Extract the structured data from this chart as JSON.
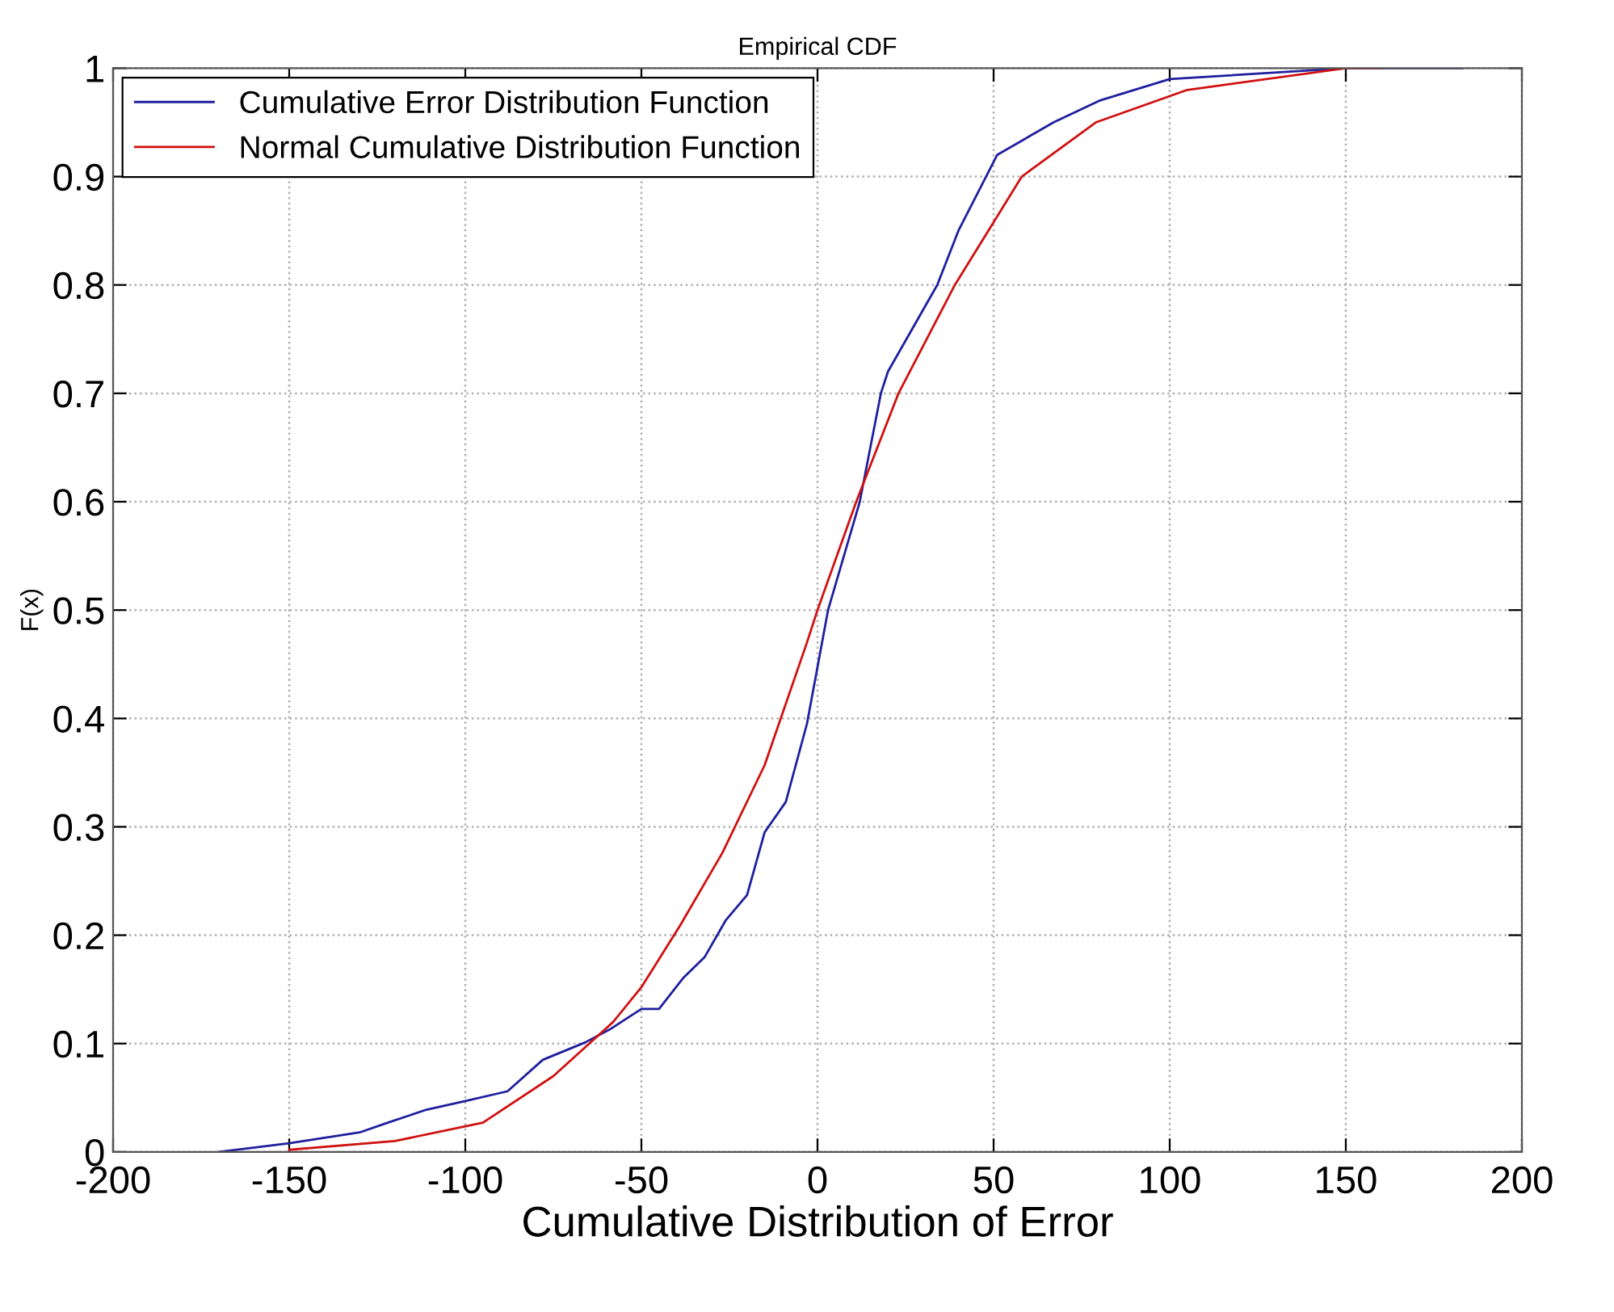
{
  "chart_data": {
    "type": "line",
    "title": "Empirical CDF",
    "xlabel": "Cumulative Distribution of Error",
    "ylabel": "F(x)",
    "xlim": [
      -200,
      200
    ],
    "xticks": [
      -200,
      -150,
      -100,
      -50,
      0,
      50,
      100,
      150,
      200
    ],
    "ylim": [
      0,
      1
    ],
    "yticks": [
      0,
      0.1,
      0.2,
      0.3,
      0.4,
      0.5,
      0.6,
      0.7,
      0.8,
      0.9,
      1
    ],
    "grid": true,
    "legend": "top left",
    "series": [
      {
        "name": "Cumulative Error Distribution Function",
        "color": "#1f1f9f",
        "x": [
          -170,
          -150,
          -130,
          -122,
          -111,
          -100,
          -88,
          -78,
          -66,
          -59,
          -50,
          -45,
          -38,
          -32,
          -26,
          -20,
          -15,
          -9,
          -3,
          3,
          12,
          18,
          20,
          34,
          40,
          51,
          67,
          80,
          100,
          150,
          183
        ],
        "values": [
          0,
          0.008,
          0.018,
          0.027,
          0.039,
          0.047,
          0.056,
          0.085,
          0.101,
          0.113,
          0.132,
          0.132,
          0.161,
          0.18,
          0.214,
          0.237,
          0.295,
          0.323,
          0.395,
          0.5,
          0.6,
          0.7,
          0.72,
          0.8,
          0.85,
          0.92,
          0.95,
          0.97,
          0.99,
          1,
          1
        ]
      },
      {
        "name": "Normal Cumulative Distribution Function",
        "color": "#d01010",
        "x": [
          -150,
          -120,
          -95,
          -75,
          -58,
          -50,
          -39,
          -27,
          -15,
          -3,
          0,
          11,
          23,
          39,
          58,
          79,
          105,
          150,
          160
        ],
        "values": [
          0.002,
          0.01,
          0.027,
          0.07,
          0.12,
          0.152,
          0.209,
          0.276,
          0.357,
          0.47,
          0.5,
          0.6,
          0.7,
          0.8,
          0.9,
          0.95,
          0.98,
          1,
          1
        ]
      }
    ]
  }
}
